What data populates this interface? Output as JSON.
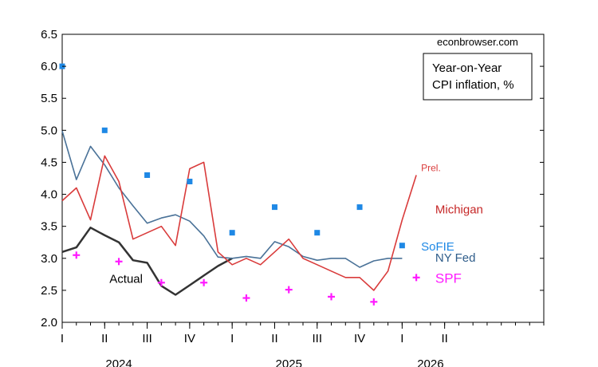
{
  "chart_data": {
    "type": "line",
    "title": "",
    "xlabel": "",
    "ylabel": "",
    "watermark": "econbrowser.com",
    "legend_box": [
      "Year-on-Year",
      "CPI inflation, %"
    ],
    "ylim": [
      2.0,
      6.5
    ],
    "yticks": [
      2.0,
      2.5,
      3.0,
      3.5,
      4.0,
      4.5,
      5.0,
      5.5,
      6.0,
      6.5
    ],
    "xlim": [
      "2024-01",
      "2026-11"
    ],
    "quarter_ticks": [
      {
        "date": "2024-01",
        "label": "I"
      },
      {
        "date": "2024-04",
        "label": "II"
      },
      {
        "date": "2024-07",
        "label": "III"
      },
      {
        "date": "2024-10",
        "label": "IV"
      },
      {
        "date": "2025-01",
        "label": "I"
      },
      {
        "date": "2025-04",
        "label": "II"
      },
      {
        "date": "2025-07",
        "label": "III"
      },
      {
        "date": "2025-10",
        "label": "IV"
      },
      {
        "date": "2026-01",
        "label": "I"
      },
      {
        "date": "2026-04",
        "label": "II"
      }
    ],
    "year_labels": [
      {
        "date": "2024-05",
        "label": "2024"
      },
      {
        "date": "2025-05",
        "label": "2025"
      },
      {
        "date": "2026-03",
        "label": "2026"
      }
    ],
    "colors": {
      "actual": "#333333",
      "ny_fed": "#4a7298",
      "michigan": "#d93b3b",
      "sofie": "#1e88e5",
      "spf": "#ff1aff"
    },
    "series": [
      {
        "name": "Actual",
        "style": "line",
        "points": [
          [
            "2024-01",
            3.1
          ],
          [
            "2024-02",
            3.17
          ],
          [
            "2024-03",
            3.48
          ],
          [
            "2024-04",
            3.36
          ],
          [
            "2024-05",
            3.25
          ],
          [
            "2024-06",
            2.97
          ],
          [
            "2024-07",
            2.93
          ],
          [
            "2024-08",
            2.57
          ],
          [
            "2024-09",
            2.43
          ],
          [
            "2024-10",
            2.58
          ],
          [
            "2024-11",
            2.73
          ],
          [
            "2024-12",
            2.88
          ],
          [
            "2025-01",
            3.0
          ]
        ]
      },
      {
        "name": "NY Fed",
        "style": "line",
        "points": [
          [
            "2024-01",
            4.99
          ],
          [
            "2024-02",
            4.23
          ],
          [
            "2024-03",
            4.75
          ],
          [
            "2024-04",
            4.46
          ],
          [
            "2024-05",
            4.1
          ],
          [
            "2024-06",
            3.82
          ],
          [
            "2024-07",
            3.55
          ],
          [
            "2024-08",
            3.63
          ],
          [
            "2024-09",
            3.68
          ],
          [
            "2024-10",
            3.58
          ],
          [
            "2024-11",
            3.35
          ],
          [
            "2024-12",
            3.02
          ],
          [
            "2025-01",
            3.0
          ],
          [
            "2025-02",
            3.03
          ],
          [
            "2025-03",
            3.0
          ],
          [
            "2025-04",
            3.26
          ],
          [
            "2025-05",
            3.18
          ],
          [
            "2025-06",
            3.03
          ],
          [
            "2025-07",
            2.97
          ],
          [
            "2025-08",
            3.0
          ],
          [
            "2025-09",
            3.0
          ],
          [
            "2025-10",
            2.86
          ],
          [
            "2025-11",
            2.96
          ],
          [
            "2025-12",
            3.0
          ],
          [
            "2026-01",
            3.0
          ]
        ]
      },
      {
        "name": "Michigan",
        "style": "line",
        "points": [
          [
            "2024-01",
            3.9
          ],
          [
            "2024-02",
            4.1
          ],
          [
            "2024-03",
            3.6
          ],
          [
            "2024-04",
            4.6
          ],
          [
            "2024-05",
            4.2
          ],
          [
            "2024-06",
            3.3
          ],
          [
            "2024-07",
            3.4
          ],
          [
            "2024-08",
            3.5
          ],
          [
            "2024-09",
            3.2
          ],
          [
            "2024-10",
            4.4
          ],
          [
            "2024-11",
            4.5
          ],
          [
            "2024-12",
            3.1
          ],
          [
            "2025-01",
            2.9
          ],
          [
            "2025-02",
            3.0
          ],
          [
            "2025-03",
            2.9
          ],
          [
            "2025-04",
            3.1
          ],
          [
            "2025-05",
            3.3
          ],
          [
            "2025-06",
            3.0
          ],
          [
            "2025-07",
            2.9
          ],
          [
            "2025-08",
            2.8
          ],
          [
            "2025-09",
            2.7
          ],
          [
            "2025-10",
            2.7
          ],
          [
            "2025-11",
            2.5
          ],
          [
            "2025-12",
            2.8
          ],
          [
            "2026-01",
            3.6
          ],
          [
            "2026-02",
            4.3
          ]
        ]
      },
      {
        "name": "SoFIE",
        "style": "square",
        "points": [
          [
            "2024-01",
            6.0
          ],
          [
            "2024-04",
            5.0
          ],
          [
            "2024-07",
            4.3
          ],
          [
            "2024-10",
            4.2
          ],
          [
            "2025-01",
            3.4
          ],
          [
            "2025-04",
            3.8
          ],
          [
            "2025-07",
            3.4
          ],
          [
            "2025-10",
            3.8
          ],
          [
            "2026-01",
            3.2
          ]
        ]
      },
      {
        "name": "SPF",
        "style": "plus",
        "points": [
          [
            "2024-02",
            3.05
          ],
          [
            "2024-05",
            2.95
          ],
          [
            "2024-08",
            2.62
          ],
          [
            "2024-11",
            2.62
          ],
          [
            "2025-02",
            2.38
          ],
          [
            "2025-05",
            2.51
          ],
          [
            "2025-08",
            2.4
          ],
          [
            "2025-11",
            2.32
          ],
          [
            "2026-02",
            2.7
          ]
        ]
      }
    ],
    "annotations": [
      {
        "text": "Prel.",
        "date": "2026-02",
        "value": 4.36,
        "color": "#d93b3b",
        "size": 12
      },
      {
        "text": "Michigan",
        "date": "2026-03",
        "value": 3.7,
        "color": "#c62828",
        "size": 15
      },
      {
        "text": "SoFIE",
        "date": "2026-02",
        "value": 3.12,
        "color": "#1e88e5",
        "size": 15
      },
      {
        "text": "NY Fed",
        "date": "2026-03",
        "value": 2.95,
        "color": "#2f5d8a",
        "size": 15
      },
      {
        "text": "SPF",
        "date": "2026-03",
        "value": 2.62,
        "color": "#ff1aff",
        "size": 17
      },
      {
        "text": "Actual",
        "date": "2024-04",
        "value": 2.62,
        "color": "#000000",
        "size": 15
      }
    ]
  }
}
